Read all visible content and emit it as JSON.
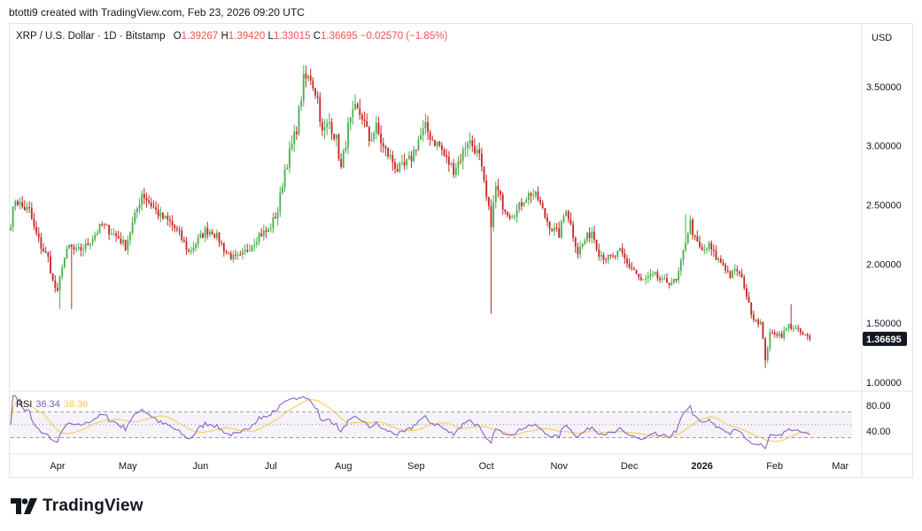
{
  "credit": "btotti9 created with TradingView.com, Feb 23, 2026 09:20 UTC",
  "brand": "TradingView",
  "currency": "USD",
  "legend": {
    "symbol": "XRP / U.S. Dollar · 1D · Bitstamp",
    "open_label": "O",
    "open": "1.39267",
    "high_label": "H",
    "high": "1.39420",
    "low_label": "L",
    "low": "1.33015",
    "close_label": "C",
    "close": "1.36695",
    "change": "−0.02570 (−1.85%)"
  },
  "rsi": {
    "label": "RSI",
    "value": "36.34",
    "ma_value": "38.36",
    "ticks": [
      "80.00",
      "40.00"
    ]
  },
  "colors": {
    "up": "#26a69a",
    "down": "#ef5350",
    "up_candle": "#4caf50",
    "down_candle": "#c62828",
    "rsi_line": "#7e57c2",
    "rsi_ma": "#f7c948"
  },
  "chart_data": {
    "type": "candlestick",
    "y_ticks": [
      "3.50000",
      "3.00000",
      "2.50000",
      "2.00000",
      "1.50000",
      "1.00000"
    ],
    "y_tick_values": [
      3.5,
      3.0,
      2.5,
      2.0,
      1.5,
      1.0
    ],
    "ylim": [
      0.94,
      3.82
    ],
    "last_price_label": "1.36695",
    "last_price": 1.36695,
    "x_ticks": [
      "Apr",
      "May",
      "Jun",
      "Jul",
      "Aug",
      "Sep",
      "Oct",
      "Nov",
      "Dec",
      "2026",
      "Feb",
      "Mar"
    ],
    "x_tick_days": [
      0,
      30,
      61,
      91,
      122,
      153,
      183,
      214,
      244,
      275,
      306,
      334
    ],
    "x_range_days": [
      -20,
      339
    ],
    "close_anchors": [
      [
        -20,
        2.35
      ],
      [
        -18,
        2.55
      ],
      [
        -15,
        2.48
      ],
      [
        -12,
        2.45
      ],
      [
        -10,
        2.3
      ],
      [
        -7,
        2.15
      ],
      [
        -4,
        2.05
      ],
      [
        -2,
        1.85
      ],
      [
        0,
        1.75
      ],
      [
        2,
        2.0
      ],
      [
        5,
        2.15
      ],
      [
        8,
        2.1
      ],
      [
        12,
        2.15
      ],
      [
        16,
        2.25
      ],
      [
        19,
        2.33
      ],
      [
        23,
        2.27
      ],
      [
        26,
        2.22
      ],
      [
        29,
        2.15
      ],
      [
        33,
        2.4
      ],
      [
        36,
        2.6
      ],
      [
        40,
        2.5
      ],
      [
        44,
        2.4
      ],
      [
        48,
        2.35
      ],
      [
        52,
        2.25
      ],
      [
        56,
        2.1
      ],
      [
        60,
        2.2
      ],
      [
        63,
        2.28
      ],
      [
        66,
        2.28
      ],
      [
        69,
        2.2
      ],
      [
        72,
        2.1
      ],
      [
        75,
        2.05
      ],
      [
        78,
        2.05
      ],
      [
        82,
        2.15
      ],
      [
        86,
        2.25
      ],
      [
        90,
        2.28
      ],
      [
        94,
        2.45
      ],
      [
        97,
        2.8
      ],
      [
        100,
        3.0
      ],
      [
        102,
        3.15
      ],
      [
        105,
        3.55
      ],
      [
        108,
        3.58
      ],
      [
        111,
        3.4
      ],
      [
        113,
        3.1
      ],
      [
        116,
        3.2
      ],
      [
        119,
        3.05
      ],
      [
        121,
        2.8
      ],
      [
        124,
        3.15
      ],
      [
        127,
        3.3
      ],
      [
        130,
        3.25
      ],
      [
        133,
        3.05
      ],
      [
        136,
        3.15
      ],
      [
        139,
        2.98
      ],
      [
        142,
        2.9
      ],
      [
        145,
        2.8
      ],
      [
        148,
        2.82
      ],
      [
        151,
        2.9
      ],
      [
        154,
        3.05
      ],
      [
        157,
        3.15
      ],
      [
        160,
        3.05
      ],
      [
        163,
        3.0
      ],
      [
        166,
        2.88
      ],
      [
        169,
        2.8
      ],
      [
        172,
        2.9
      ],
      [
        175,
        3.05
      ],
      [
        178,
        2.98
      ],
      [
        180,
        2.9
      ],
      [
        183,
        2.55
      ],
      [
        185,
        2.35
      ],
      [
        187,
        2.65
      ],
      [
        190,
        2.5
      ],
      [
        193,
        2.42
      ],
      [
        196,
        2.45
      ],
      [
        199,
        2.55
      ],
      [
        202,
        2.6
      ],
      [
        205,
        2.55
      ],
      [
        208,
        2.4
      ],
      [
        211,
        2.3
      ],
      [
        214,
        2.25
      ],
      [
        217,
        2.48
      ],
      [
        220,
        2.25
      ],
      [
        222,
        2.1
      ],
      [
        225,
        2.2
      ],
      [
        228,
        2.28
      ],
      [
        231,
        2.1
      ],
      [
        234,
        2.05
      ],
      [
        237,
        2.05
      ],
      [
        240,
        2.1
      ],
      [
        243,
        2.0
      ],
      [
        246,
        1.95
      ],
      [
        249,
        1.85
      ],
      [
        252,
        1.88
      ],
      [
        255,
        1.9
      ],
      [
        258,
        1.85
      ],
      [
        261,
        1.85
      ],
      [
        264,
        1.85
      ],
      [
        266,
        2.0
      ],
      [
        268,
        2.2
      ],
      [
        270,
        2.35
      ],
      [
        272,
        2.2
      ],
      [
        275,
        2.1
      ],
      [
        278,
        2.15
      ],
      [
        281,
        2.05
      ],
      [
        284,
        2.0
      ],
      [
        287,
        1.9
      ],
      [
        290,
        1.95
      ],
      [
        293,
        1.82
      ],
      [
        295,
        1.65
      ],
      [
        297,
        1.55
      ],
      [
        300,
        1.5
      ],
      [
        302,
        1.2
      ],
      [
        304,
        1.4
      ],
      [
        306,
        1.42
      ],
      [
        309,
        1.4
      ],
      [
        312,
        1.48
      ],
      [
        315,
        1.45
      ],
      [
        318,
        1.4
      ],
      [
        321,
        1.37
      ]
    ],
    "wick_extremes": [
      {
        "day": 1,
        "low": 1.62
      },
      {
        "day": 6,
        "low": 1.62
      },
      {
        "day": 105,
        "high": 3.68
      },
      {
        "day": 108,
        "high": 3.65
      },
      {
        "day": 185,
        "low": 1.58
      },
      {
        "day": 268,
        "high": 2.42
      },
      {
        "day": 302,
        "low": 1.12
      },
      {
        "day": 313,
        "high": 1.66
      }
    ]
  }
}
